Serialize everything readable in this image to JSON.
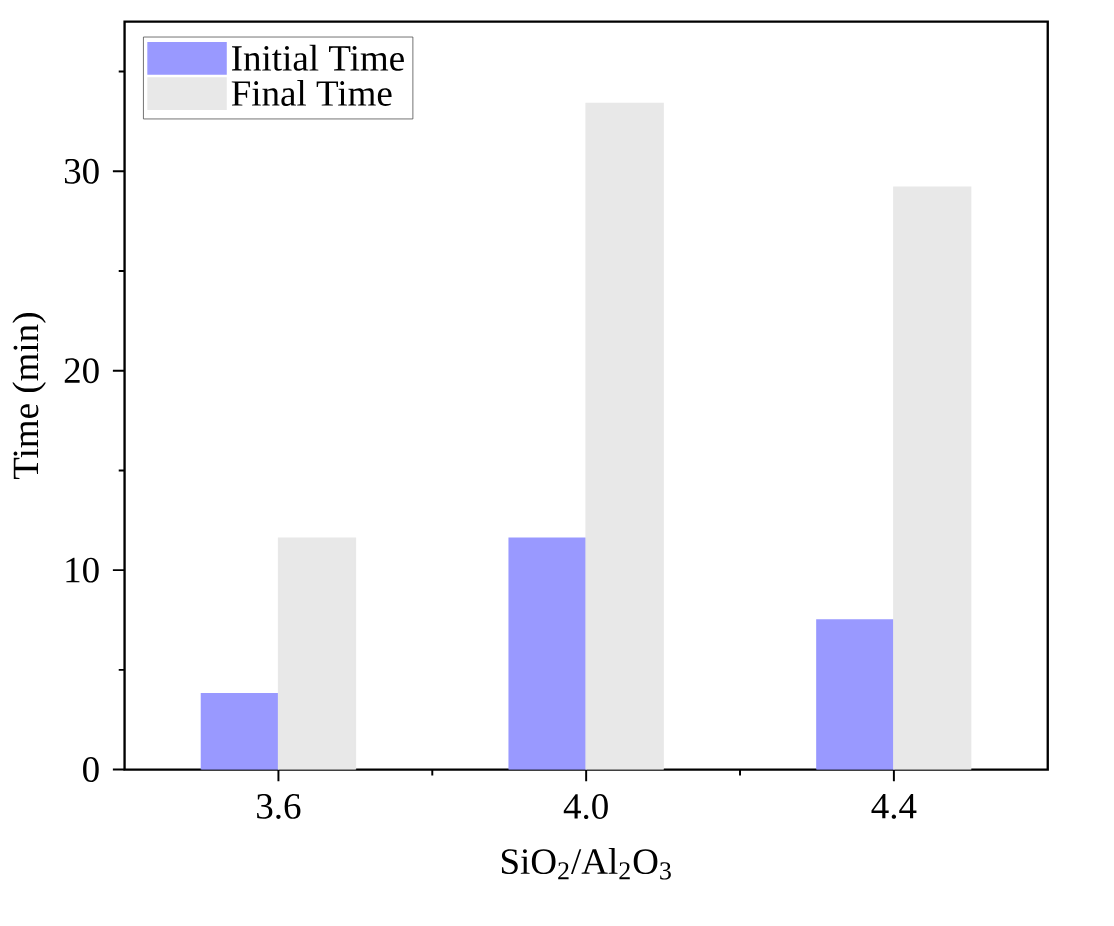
{
  "chart_data": {
    "type": "bar",
    "xlabel": "SiO$_{2}$/Al$_{2}$O$_{3}$",
    "ylabel": "Time (min)",
    "categories": [
      "3.6",
      "4.0",
      "4.4"
    ],
    "series": [
      {
        "name": "Initial Time",
        "color": "#9999ff",
        "values": [
          3.8,
          11.6,
          7.5
        ]
      },
      {
        "name": "Final Time",
        "color": "#e8e8e8",
        "values": [
          11.6,
          33.4,
          29.2
        ]
      }
    ],
    "ylim": [
      0,
      37.5
    ],
    "yticks": [
      0,
      10,
      20,
      30
    ],
    "grid": false,
    "legend": "top left"
  }
}
